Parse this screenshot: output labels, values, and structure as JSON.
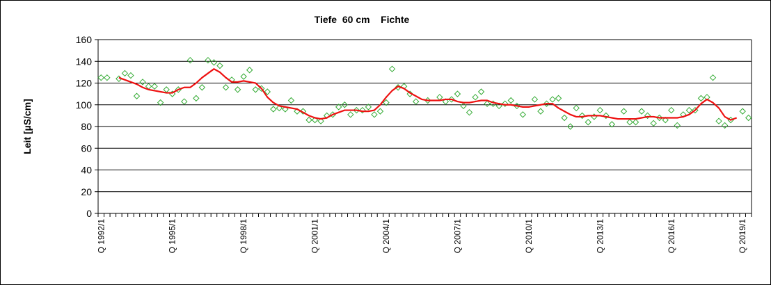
{
  "chart_data": {
    "type": "line",
    "title": "Tiefe  60 cm    Fichte",
    "ylabel": "Leit [µS/cm]",
    "xlabel": "",
    "ylim": [
      0,
      160
    ],
    "yticks": [
      0,
      20,
      40,
      60,
      80,
      100,
      120,
      140,
      160
    ],
    "grid": true,
    "x_categories_note": "Quarterly index from Q 1992/1 to Q 2019/1",
    "x_tick_labels": [
      "Q 1992/1",
      "Q 1995/1",
      "Q 1998/1",
      "Q 2001/1",
      "Q 2004/1",
      "Q 2007/1",
      "Q 2010/1",
      "Q 2013/1",
      "Q 2016/1",
      "Q 2019/1"
    ],
    "x_start_year": 1992,
    "x_start_quarter": 1,
    "x_count": 110,
    "series": [
      {
        "role": "scatter",
        "marker": "diamond",
        "color": "#33aa33",
        "values": [
          125,
          125,
          null,
          124,
          129,
          127,
          108,
          121,
          117,
          117,
          102,
          114,
          110,
          114,
          103,
          141,
          106,
          116,
          141,
          139,
          136,
          116,
          123,
          114,
          126,
          132,
          114,
          115,
          112,
          96,
          97,
          96,
          104,
          94,
          94,
          86,
          86,
          85,
          90,
          91,
          98,
          100,
          91,
          95,
          95,
          98,
          91,
          94,
          102,
          133,
          116,
          117,
          110,
          103,
          null,
          104,
          null,
          107,
          103,
          105,
          110,
          99,
          93,
          107,
          112,
          101,
          101,
          99,
          101,
          104,
          99,
          91,
          null,
          105,
          94,
          101,
          105,
          106,
          88,
          80,
          97,
          90,
          84,
          89,
          95,
          90,
          82,
          null,
          94,
          84,
          84,
          94,
          90,
          83,
          88,
          86,
          95,
          81,
          91,
          95,
          95,
          106,
          107,
          125,
          85,
          81,
          86,
          null,
          94,
          88
        ]
      },
      {
        "role": "moving-average",
        "color": "#ee1111",
        "values": [
          null,
          null,
          null,
          125,
          123,
          121,
          119,
          116,
          114,
          113,
          112,
          111,
          111,
          114,
          116,
          116,
          120,
          125,
          129,
          133,
          130,
          125,
          121,
          121,
          122,
          121,
          120,
          115,
          107,
          102,
          99,
          98,
          97,
          96,
          93,
          90,
          88,
          87,
          88,
          91,
          93,
          95,
          95,
          95,
          94,
          94,
          95,
          100,
          107,
          113,
          117,
          115,
          111,
          108,
          105,
          104,
          104,
          104,
          105,
          105,
          103,
          102,
          102,
          103,
          104,
          104,
          102,
          101,
          100,
          100,
          99,
          98,
          98,
          99,
          100,
          101,
          101,
          97,
          94,
          91,
          89,
          89,
          90,
          90,
          90,
          89,
          88,
          87,
          87,
          87,
          87,
          88,
          89,
          89,
          88,
          88,
          88,
          88,
          89,
          91,
          95,
          101,
          105,
          102,
          97,
          89,
          86,
          88,
          null,
          null
        ]
      }
    ]
  }
}
